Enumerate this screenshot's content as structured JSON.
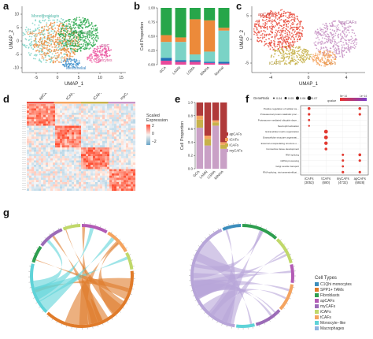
{
  "panel_letters": {
    "a": "a",
    "b": "b",
    "c": "c",
    "d": "d",
    "e": "e",
    "f": "f",
    "g": "g"
  },
  "panel_a": {
    "xlabel": "UMAP_1",
    "ylabel": "UMAP_2",
    "xticks": [
      "-5",
      "0",
      "5",
      "10",
      "15"
    ],
    "yticks": [
      "10",
      "5",
      "0",
      "-5",
      "-10"
    ],
    "cluster_labels": [
      "Monofibroblasts",
      "CAF",
      "Fibroblasts",
      "SMC",
      "Pericytes",
      "Mesothelial"
    ],
    "colors": {
      "mono": "#7ad3c6",
      "caf": "#ec8a3a",
      "fib": "#27a64a",
      "smc": "#e8489a",
      "peri": "#f277b1",
      "meso": "#3b8fcc"
    }
  },
  "panel_c": {
    "xlabel": "UMAP_1",
    "ylabel": "UMAP_2",
    "xticks": [
      "-4",
      "0",
      "4"
    ],
    "yticks": [
      "5",
      "0",
      "-5"
    ],
    "cluster_labels": [
      "apCAFs",
      "myCAFs",
      "tCAFs",
      "iCAFs"
    ],
    "colors": {
      "ap": "#e94b3c",
      "my": "#c894c6",
      "t": "#f4a460",
      "i": "#c7b14a"
    }
  },
  "panel_d": {
    "column_groups": [
      "apCAFs",
      "tCAFs",
      "iCAFs",
      "myCAFs"
    ],
    "legend_title": "Scaled\nExpression",
    "legend_ticks": [
      "2",
      "0",
      "−2"
    ]
  },
  "panel_f": {
    "size_legend_title": "GeneRatio",
    "size_values": [
      "0.04",
      "0.05",
      "0.06",
      "0.07"
    ],
    "color_legend_title": "qvalue",
    "color_ticks": [
      "5e−14",
      "1e−14"
    ],
    "terms": [
      "Positive regulation of cellular catabolic process",
      "Proteasomal protein catabolic process",
      "Proteasome-mediated ubiquitin-dependent protein catabolic process",
      "Neutrophil activation",
      "Extracellular matrix organization",
      "Extracellular structure organization",
      "External encapsulating structure organization",
      "Connective tissue development",
      "RNA splicing",
      "mRNA processing",
      "Golgi vesicle transport",
      "RNA splicing, via transesterification reactions"
    ],
    "groups": [
      "iCAFs\n(3052)",
      "tCAFs\n(680)",
      "myCAFs\n(4732)",
      "apCAFs\n(6928)"
    ]
  },
  "panel_g": {
    "legend_title": "Cell Types",
    "legend": [
      {
        "name": "C1Qhi monocytes",
        "color": "#3c8dbc"
      },
      {
        "name": "SPP1+ TAMs",
        "color": "#e07b2a"
      },
      {
        "name": "Fibroblasts",
        "color": "#2e9e4f"
      },
      {
        "name": "apCAFs",
        "color": "#b25bb5"
      },
      {
        "name": "myCAFs",
        "color": "#9b6bb7"
      },
      {
        "name": "iCAFs",
        "color": "#c0d86a"
      },
      {
        "name": "tCAFs",
        "color": "#f4a460"
      },
      {
        "name": "Monocyte−like",
        "color": "#5fd3d8"
      },
      {
        "name": "Macrophages",
        "color": "#8fb3e0"
      }
    ]
  },
  "chart_data": [
    {
      "type": "bar",
      "panel": "b",
      "ylabel": "Cell Proportion",
      "categories": [
        "GCA",
        "LAMN",
        "LGMA",
        "MiNHA",
        "Normal"
      ],
      "yticks": [
        "0.00",
        "0.25",
        "0.50",
        "0.75",
        "1.00"
      ],
      "ylim": [
        0,
        1
      ],
      "series": [
        {
          "color": "#e8489a",
          "values": [
            0.07,
            0.05,
            0.05,
            0.03,
            0.02
          ]
        },
        {
          "color": "#1e6fb8",
          "values": [
            0.05,
            0.03,
            0.03,
            0.02,
            0.03
          ]
        },
        {
          "color": "#7ad3c6",
          "values": [
            0.28,
            0.32,
            0.1,
            0.18,
            0.55
          ]
        },
        {
          "color": "#ec8a3a",
          "values": [
            0.12,
            0.08,
            0.62,
            0.55,
            0.05
          ]
        },
        {
          "color": "#27a64a",
          "values": [
            0.48,
            0.52,
            0.2,
            0.22,
            0.35
          ]
        }
      ]
    },
    {
      "type": "bar",
      "panel": "e",
      "ylabel": "Cell Proportion",
      "categories": [
        "GCA",
        "LAMN",
        "LGMA",
        "MiNHA"
      ],
      "yticks": [
        "0.0",
        "0.2",
        "0.4",
        "0.6",
        "0.8",
        "1.0"
      ],
      "ylim": [
        0,
        1
      ],
      "legend": [
        "apCAFs",
        "tCAFs",
        "iCAFs",
        "myCAFs"
      ],
      "series": [
        {
          "name": "myCAFs",
          "color": "#c9a0c6",
          "values": [
            0.62,
            0.35,
            0.65,
            0.3
          ]
        },
        {
          "name": "iCAFs",
          "color": "#c7b14a",
          "values": [
            0.12,
            0.1,
            0.05,
            0.06
          ]
        },
        {
          "name": "tCAFs",
          "color": "#f4a460",
          "values": [
            0.06,
            0.05,
            0.03,
            0.04
          ]
        },
        {
          "name": "apCAFs",
          "color": "#b03a3a",
          "values": [
            0.2,
            0.5,
            0.27,
            0.6
          ]
        }
      ]
    }
  ]
}
